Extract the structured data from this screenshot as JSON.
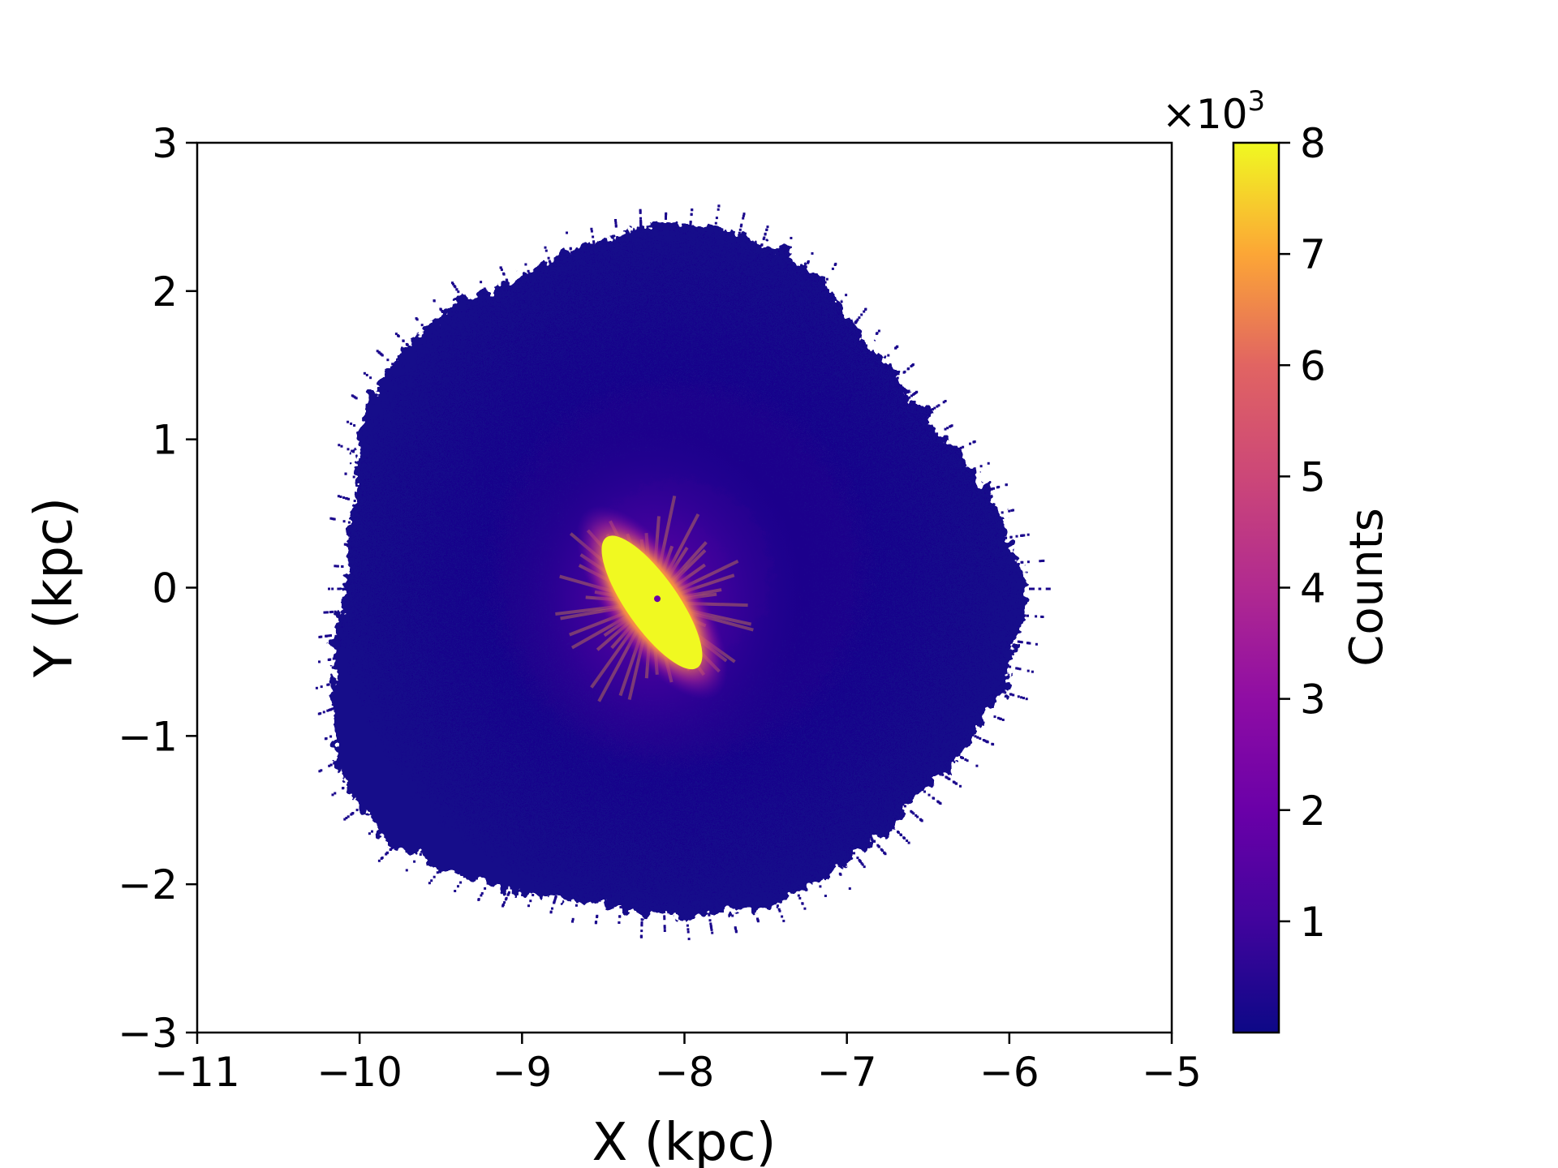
{
  "chart_data": {
    "type": "heatmap",
    "title": "",
    "xlabel": "X (kpc)",
    "ylabel": "Y (kpc)",
    "xlim": [
      -11,
      -5
    ],
    "ylim": [
      -3,
      3
    ],
    "x_ticks": [
      -11,
      -10,
      -9,
      -8,
      -7,
      -6,
      -5
    ],
    "x_tick_labels": [
      "−11",
      "−10",
      "−9",
      "−8",
      "−7",
      "−6",
      "−5"
    ],
    "y_ticks": [
      -3,
      -2,
      -1,
      0,
      1,
      2,
      3
    ],
    "y_tick_labels": [
      "−3",
      "−2",
      "−1",
      "0",
      "1",
      "2",
      "3"
    ],
    "colorbar": {
      "label": "Counts",
      "colormap": "plasma",
      "min": 0,
      "max": 8,
      "ticks": [
        1,
        2,
        3,
        4,
        5,
        6,
        7,
        8
      ],
      "tick_labels": [
        "1",
        "2",
        "3",
        "4",
        "5",
        "6",
        "7",
        "8"
      ],
      "offset_text": "×10",
      "offset_exponent": "3"
    },
    "distribution": {
      "center": [
        -8.2,
        0.0
      ],
      "extent_x": [
        -10.3,
        -6.0
      ],
      "extent_y": [
        -2.5,
        2.5
      ],
      "background_level": 0.6,
      "peak_level": 8,
      "peak_center": [
        -8.2,
        -0.1
      ],
      "peak_axis_angle_deg": -55
    },
    "grid": false,
    "legend": "none"
  },
  "colors": {
    "background": "#ffffff",
    "axes": "#000000",
    "low": "#0d0887",
    "mid": "#9c179e",
    "high": "#f0f921"
  }
}
